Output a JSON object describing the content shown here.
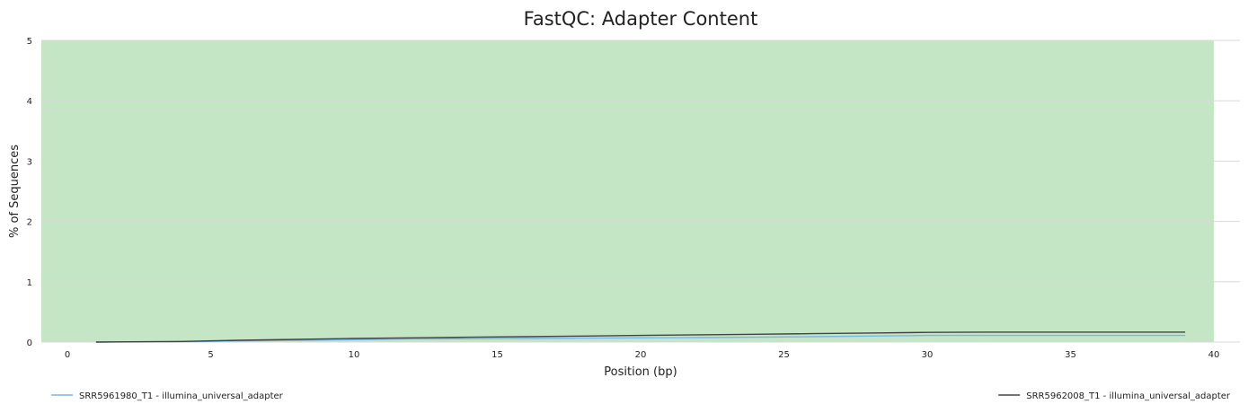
{
  "chart_data": {
    "type": "line",
    "title": "FastQC: Adapter Content",
    "xlabel": "Position (bp)",
    "ylabel": "% of Sequences",
    "xlim": [
      -1,
      41
    ],
    "ylim": [
      0,
      5
    ],
    "x_ticks": [
      0,
      5,
      10,
      15,
      20,
      25,
      30,
      35,
      40
    ],
    "y_ticks": [
      0,
      1,
      2,
      3,
      4,
      5
    ],
    "grid": "horizontal",
    "band": {
      "y_from": 0,
      "y_to": 5,
      "x_from": -1,
      "x_to": 40,
      "color": "#c4e6c4"
    },
    "legend_position": "bottom",
    "x": [
      1,
      4,
      6,
      8,
      10,
      12,
      14,
      16,
      18,
      20,
      22,
      24,
      26,
      28,
      30,
      32,
      34,
      36,
      38,
      39
    ],
    "series": [
      {
        "name": "SRR5961980_T1 - illumina_universal_adapter",
        "color": "#7cb5ec",
        "values": [
          0,
          0.005,
          0.02,
          0.03,
          0.04,
          0.05,
          0.055,
          0.06,
          0.065,
          0.07,
          0.075,
          0.08,
          0.09,
          0.1,
          0.11,
          0.11,
          0.11,
          0.11,
          0.11,
          0.11
        ]
      },
      {
        "name": "SRR5962008_T1 - illumina_universal_adapter",
        "color": "#434348",
        "values": [
          0,
          0.01,
          0.03,
          0.045,
          0.06,
          0.07,
          0.08,
          0.09,
          0.1,
          0.11,
          0.12,
          0.13,
          0.14,
          0.15,
          0.16,
          0.165,
          0.165,
          0.165,
          0.165,
          0.165
        ]
      }
    ]
  }
}
